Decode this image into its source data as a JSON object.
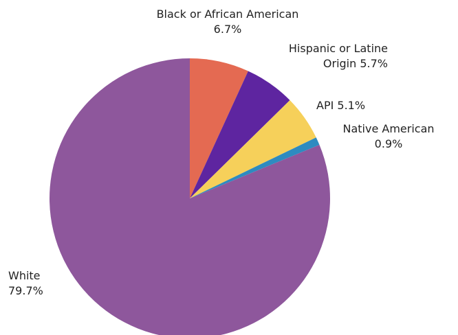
{
  "chart_data": {
    "type": "pie",
    "start_angle_deg": 0,
    "direction": "clockwise",
    "slices": [
      {
        "label": "Black or African American",
        "value": 6.7,
        "pct_text": "6.7%",
        "color": "#E46A52"
      },
      {
        "label": "Hispanic or Latine Origin",
        "value": 5.7,
        "pct_text": "5.7%",
        "color": "#5E25A0"
      },
      {
        "label": "API",
        "value": 5.1,
        "pct_text": "5.1%",
        "color": "#F6D05A"
      },
      {
        "label": "Native American",
        "value": 0.9,
        "pct_text": "0.9%",
        "color": "#2E8BC0"
      },
      {
        "label": "White",
        "value": 79.7,
        "pct_text": "79.7%",
        "color": "#8E579C"
      }
    ]
  },
  "labels": {
    "black": {
      "line1": "Black or African American",
      "line2": "6.7%"
    },
    "hispanic": {
      "line1": "Hispanic or Latine",
      "line2": "Origin 5.7%"
    },
    "api": {
      "line1": "API 5.1%"
    },
    "native": {
      "line1": "Native American",
      "line2": "0.9%"
    },
    "white": {
      "line1": "White",
      "line2": "79.7%"
    }
  }
}
